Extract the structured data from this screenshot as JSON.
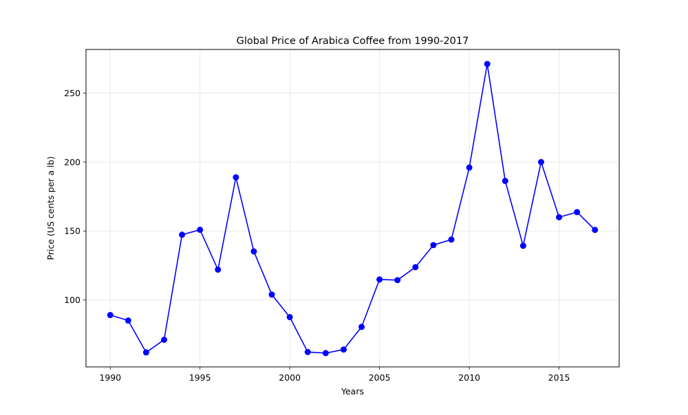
{
  "chart_data": {
    "type": "line",
    "title": "Global Price of Arabica Coffee from 1990-2017",
    "xlabel": "Years",
    "ylabel": "Price (US cents per a lb)",
    "x": [
      1990,
      1991,
      1992,
      1993,
      1994,
      1995,
      1996,
      1997,
      1998,
      1999,
      2000,
      2001,
      2002,
      2003,
      2004,
      2005,
      2006,
      2007,
      2008,
      2009,
      2010,
      2011,
      2012,
      2013,
      2014,
      2015,
      2016,
      2017
    ],
    "series": [
      {
        "values": [
          89.1,
          85.1,
          62.0,
          71.2,
          147.3,
          150.9,
          122.0,
          188.9,
          135.2,
          103.9,
          87.6,
          62.3,
          61.5,
          64.1,
          80.5,
          114.9,
          114.4,
          123.8,
          139.8,
          143.8,
          196.0,
          271.1,
          186.3,
          139.3,
          200.0,
          160.0,
          163.7,
          150.8
        ],
        "color": "#0000ff",
        "marker": "circle"
      }
    ],
    "xlim": [
      1988.65,
      2018.35
    ],
    "ylim": [
      51.5,
      281.6
    ],
    "xticks": [
      1990,
      1995,
      2000,
      2005,
      2010,
      2015
    ],
    "yticks": [
      100,
      150,
      200,
      250
    ],
    "grid": true
  }
}
